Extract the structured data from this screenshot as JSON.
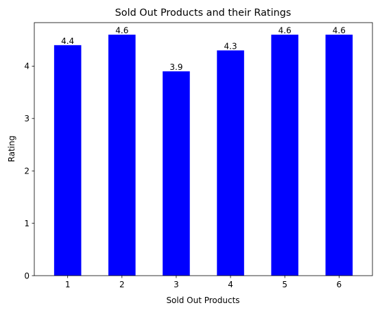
{
  "chart_data": {
    "type": "bar",
    "title": "Sold Out Products and their Ratings",
    "xlabel": "Sold Out Products",
    "ylabel": "Rating",
    "categories": [
      "1",
      "2",
      "3",
      "4",
      "5",
      "6"
    ],
    "values": [
      4.4,
      4.6,
      3.9,
      4.3,
      4.6,
      4.6
    ],
    "data_labels": [
      "4.4",
      "4.6",
      "3.9",
      "4.3",
      "4.6",
      "4.6"
    ],
    "yticks": [
      "0",
      "1",
      "2",
      "3",
      "4"
    ],
    "ylim": [
      0,
      4.83
    ],
    "bar_color": "#0000ff",
    "grid": false
  }
}
